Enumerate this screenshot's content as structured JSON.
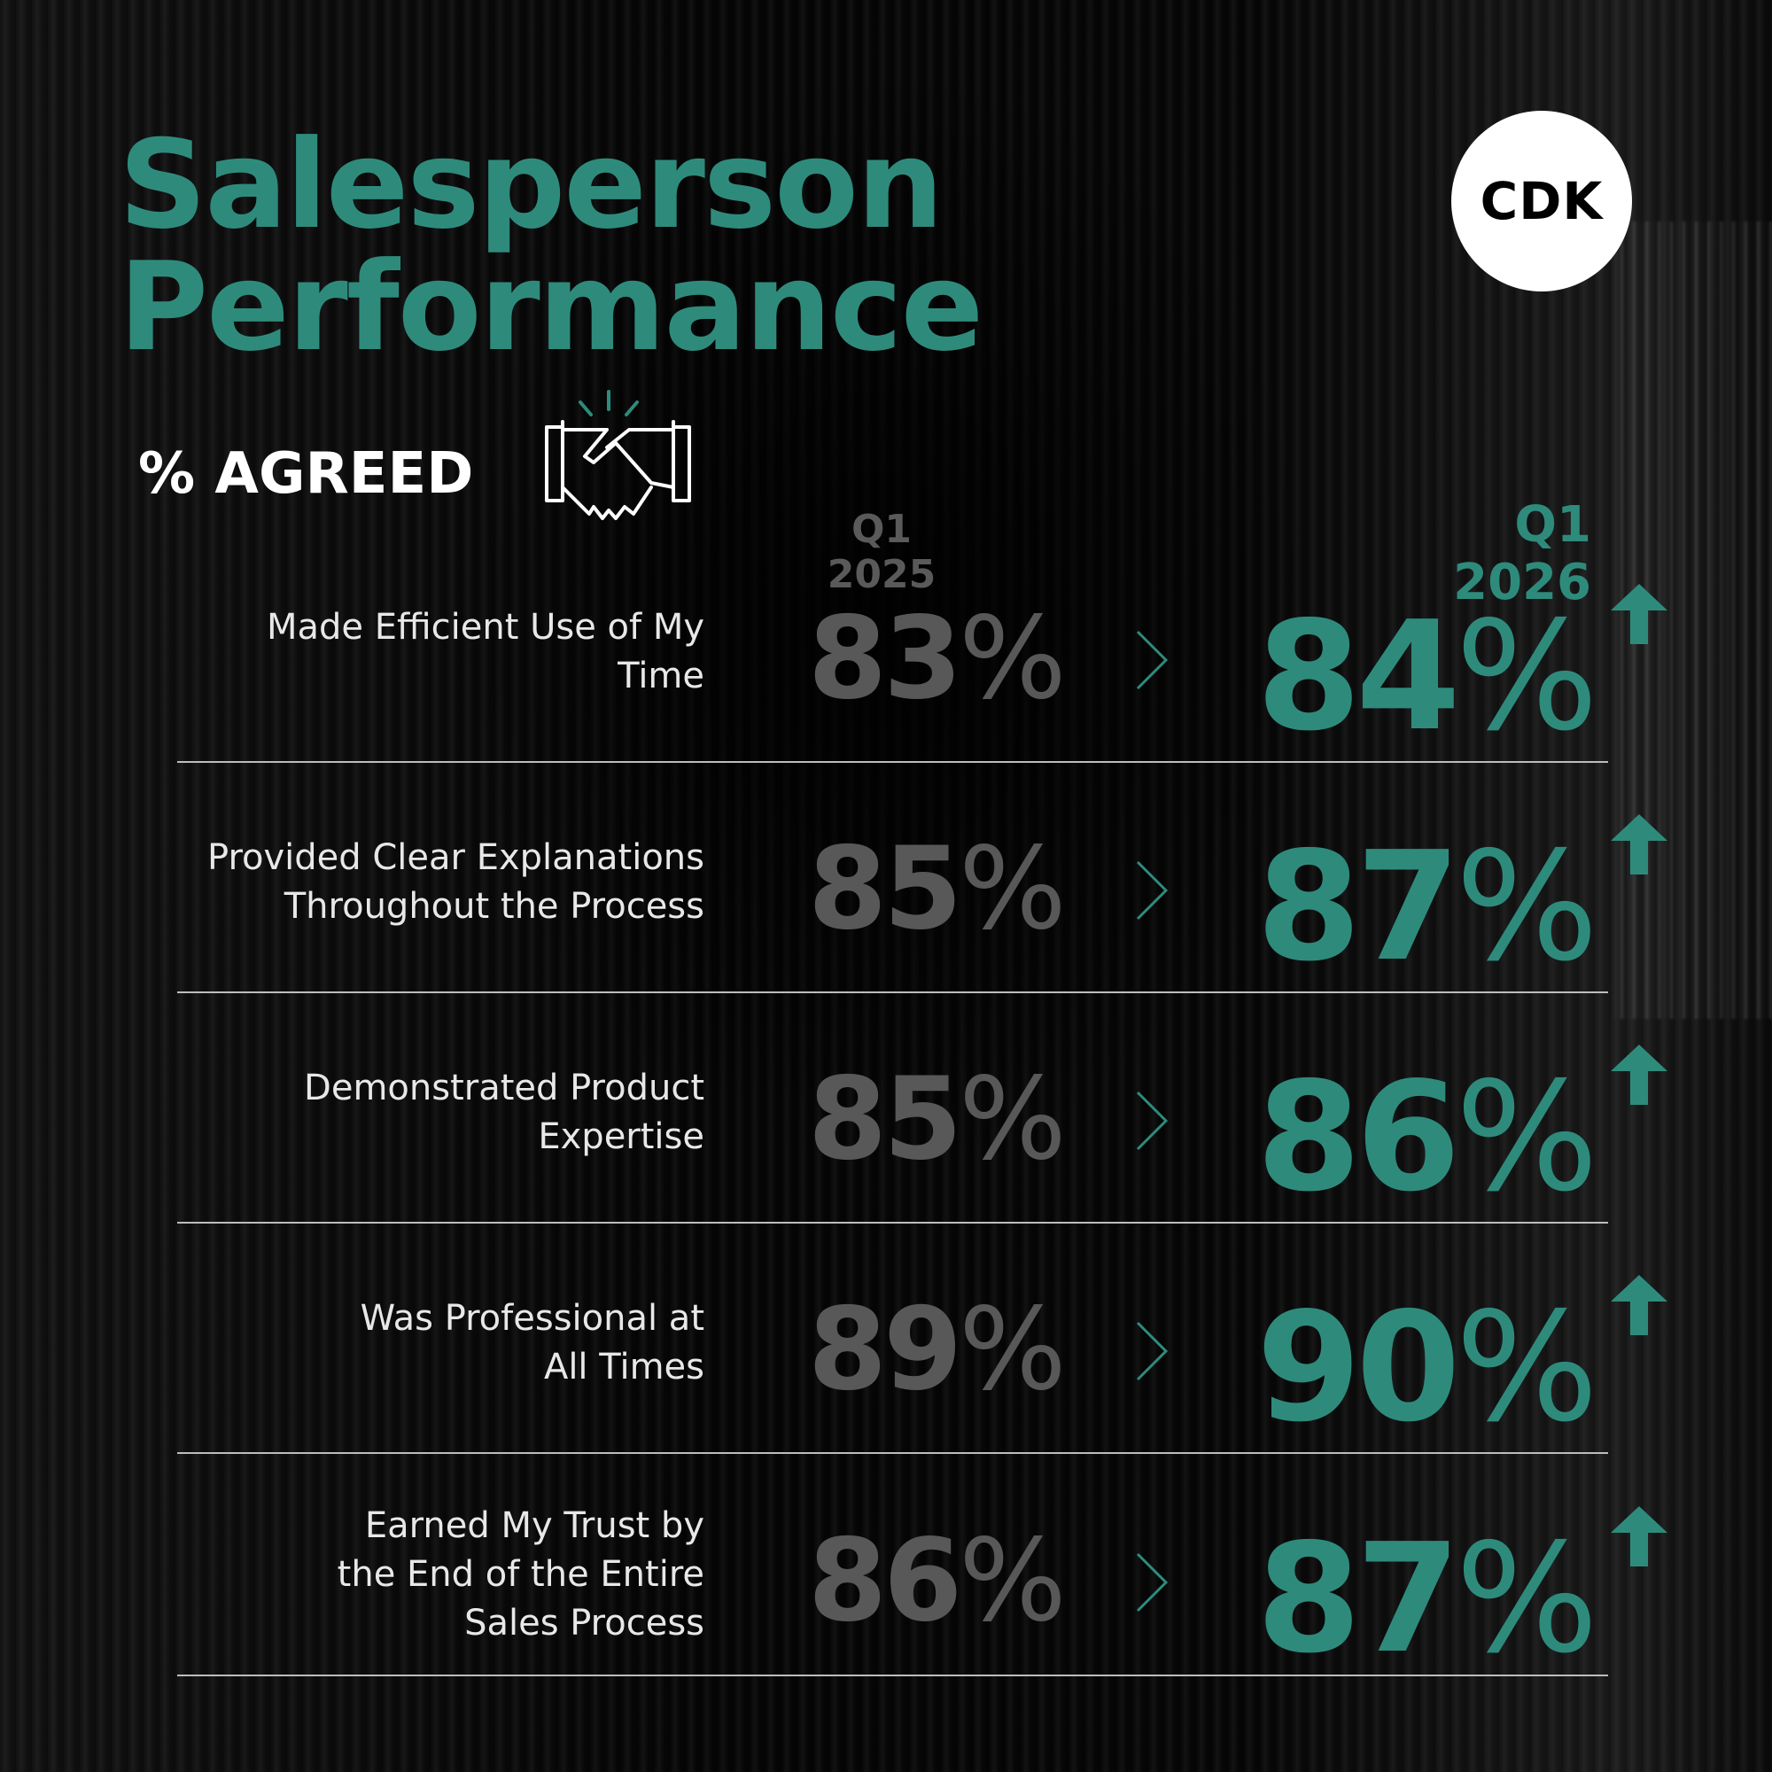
{
  "header": {
    "title_line1": "Salesperson",
    "title_line2": "Performance",
    "logo_text": "CDK",
    "subtitle": "% AGREED"
  },
  "columns": {
    "previous": "Q1 2025",
    "current": "Q1 2026"
  },
  "colors": {
    "accent": "#2e8b7c",
    "previous": "#585858",
    "background": "#070707"
  },
  "rows": [
    {
      "label_lines": [
        "Made Efficient Use of My",
        "Time"
      ],
      "previous": "83",
      "current": "84",
      "percent": "%",
      "trend": "up"
    },
    {
      "label_lines": [
        "Provided Clear Explanations",
        "Throughout the Process"
      ],
      "previous": "85",
      "current": "87",
      "percent": "%",
      "trend": "up"
    },
    {
      "label_lines": [
        "Demonstrated Product",
        "Expertise"
      ],
      "previous": "85",
      "current": "86",
      "percent": "%",
      "trend": "up"
    },
    {
      "label_lines": [
        "Was Professional at",
        "All Times"
      ],
      "previous": "89",
      "current": "90",
      "percent": "%",
      "trend": "up"
    },
    {
      "label_lines": [
        "Earned My Trust by",
        "the End of the Entire",
        "Sales Process"
      ],
      "previous": "86",
      "current": "87",
      "percent": "%",
      "trend": "up"
    }
  ]
}
